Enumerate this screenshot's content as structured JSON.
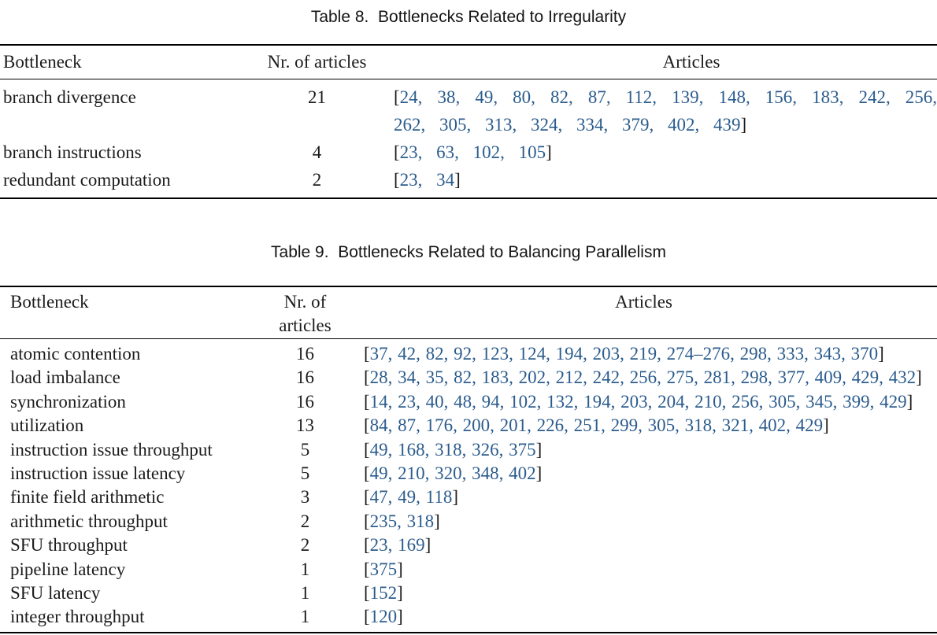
{
  "page": {
    "text_color": "#1c1c1c",
    "citation_color": "#2b5c8d",
    "rule_color": "#000000",
    "background": "#ffffff"
  },
  "tables": [
    {
      "caption": "Table 8.  Bottlenecks Related to Irregularity",
      "columns": [
        "Bottleneck",
        "Nr. of articles",
        "Articles"
      ],
      "rows": [
        {
          "bottleneck": "branch divergence",
          "nr_of_articles": "21",
          "articles": [
            "24",
            "38",
            "49",
            "80",
            "82",
            "87",
            "112",
            "139",
            "148",
            "156",
            "183",
            "242",
            "256",
            "262",
            "305",
            "313",
            "324",
            "334",
            "379",
            "402",
            "439"
          ]
        },
        {
          "bottleneck": "branch instructions",
          "nr_of_articles": "4",
          "articles": [
            "23",
            "63",
            "102",
            "105"
          ]
        },
        {
          "bottleneck": "redundant computation",
          "nr_of_articles": "2",
          "articles": [
            "23",
            "34"
          ]
        }
      ]
    },
    {
      "caption": "Table 9.  Bottlenecks Related to Balancing Parallelism",
      "columns": [
        "Bottleneck",
        "Nr. of articles",
        "Articles"
      ],
      "header_col2_lines": [
        "Nr. of",
        "articles"
      ],
      "rows": [
        {
          "bottleneck": "atomic contention",
          "nr_of_articles": "16",
          "articles": [
            "37",
            "42",
            "82",
            "92",
            "123",
            "124",
            "194",
            "203",
            "219",
            "274–276",
            "298",
            "333",
            "343",
            "370"
          ]
        },
        {
          "bottleneck": "load imbalance",
          "nr_of_articles": "16",
          "articles": [
            "28",
            "34",
            "35",
            "82",
            "183",
            "202",
            "212",
            "242",
            "256",
            "275",
            "281",
            "298",
            "377",
            "409",
            "429",
            "432"
          ]
        },
        {
          "bottleneck": "synchronization",
          "nr_of_articles": "16",
          "articles": [
            "14",
            "23",
            "40",
            "48",
            "94",
            "102",
            "132",
            "194",
            "203",
            "204",
            "210",
            "256",
            "305",
            "345",
            "399",
            "429"
          ]
        },
        {
          "bottleneck": "utilization",
          "nr_of_articles": "13",
          "articles": [
            "84",
            "87",
            "176",
            "200",
            "201",
            "226",
            "251",
            "299",
            "305",
            "318",
            "321",
            "402",
            "429"
          ]
        },
        {
          "bottleneck": "instruction issue throughput",
          "nr_of_articles": "5",
          "articles": [
            "49",
            "168",
            "318",
            "326",
            "375"
          ]
        },
        {
          "bottleneck": "instruction issue latency",
          "nr_of_articles": "5",
          "articles": [
            "49",
            "210",
            "320",
            "348",
            "402"
          ]
        },
        {
          "bottleneck": "finite field arithmetic",
          "nr_of_articles": "3",
          "articles": [
            "47",
            "49",
            "118"
          ]
        },
        {
          "bottleneck": "arithmetic throughput",
          "nr_of_articles": "2",
          "articles": [
            "235",
            "318"
          ]
        },
        {
          "bottleneck": "SFU throughput",
          "nr_of_articles": "2",
          "articles": [
            "23",
            "169"
          ]
        },
        {
          "bottleneck": "pipeline latency",
          "nr_of_articles": "1",
          "articles": [
            "375"
          ]
        },
        {
          "bottleneck": "SFU latency",
          "nr_of_articles": "1",
          "articles": [
            "152"
          ]
        },
        {
          "bottleneck": "integer throughput",
          "nr_of_articles": "1",
          "articles": [
            "120"
          ]
        }
      ]
    }
  ]
}
